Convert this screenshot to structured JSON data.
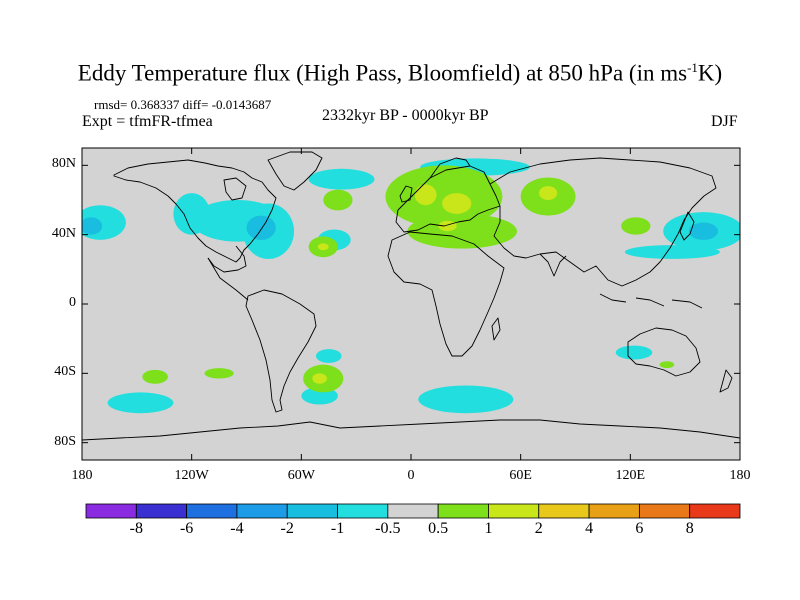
{
  "title_main": "Eddy Temperature flux (High Pass, Bloomfield) at 850 hPa (in ms",
  "title_sup": "-1",
  "title_end": "K)",
  "stats": "rmsd= 0.368337 diff= -0.0143687",
  "expt": "Expt = tfmFR-tfmea",
  "period": "2332kyr BP - 0000kyr BP",
  "season": "DJF",
  "map": {
    "projection": "cylindrical-equidistant",
    "lon_range": [
      -180,
      180
    ],
    "lat_range": [
      -90,
      90
    ],
    "y_ticks": [
      {
        "lat": 80,
        "label": "80N"
      },
      {
        "lat": 40,
        "label": "40N"
      },
      {
        "lat": 0,
        "label": "0"
      },
      {
        "lat": -40,
        "label": "40S"
      },
      {
        "lat": -80,
        "label": "80S"
      }
    ],
    "x_ticks": [
      {
        "lon": -180,
        "label": "180"
      },
      {
        "lon": -120,
        "label": "120W"
      },
      {
        "lon": -60,
        "label": "60W"
      },
      {
        "lon": 0,
        "label": "0"
      },
      {
        "lon": 60,
        "label": "60E"
      },
      {
        "lon": 120,
        "label": "120E"
      },
      {
        "lon": 180,
        "label": "180"
      }
    ],
    "background_color": "#d3d3d3",
    "coastline_color": "#000000"
  },
  "colorbar": {
    "colors": [
      "#8a2be2",
      "#3a2fd0",
      "#1e6fe0",
      "#1c9be6",
      "#19bde0",
      "#22dede",
      "#d3d3d3",
      "#7de01a",
      "#c8e61a",
      "#e8c81a",
      "#e8a016",
      "#e87818",
      "#e83a1a"
    ],
    "labels": [
      "-8",
      "-6",
      "-4",
      "-2",
      "-1",
      "-0.5",
      "0.5",
      "1",
      "2",
      "4",
      "6",
      "8"
    ]
  },
  "anomalies": [
    {
      "level": "-1",
      "color": "#22dede",
      "lon": -170,
      "lat": 47,
      "rlon": 14,
      "rlat": 10
    },
    {
      "level": "-2",
      "color": "#19bde0",
      "lon": -175,
      "lat": 45,
      "rlon": 6,
      "rlat": 5
    },
    {
      "level": "-1",
      "color": "#22dede",
      "lon": -120,
      "lat": 52,
      "rlon": 10,
      "rlat": 12
    },
    {
      "level": "-1",
      "color": "#22dede",
      "lon": -95,
      "lat": 48,
      "rlon": 25,
      "rlat": 12
    },
    {
      "level": "-1",
      "color": "#22dede",
      "lon": -78,
      "lat": 42,
      "rlon": 14,
      "rlat": 16
    },
    {
      "level": "-2",
      "color": "#19bde0",
      "lon": -82,
      "lat": 44,
      "rlon": 8,
      "rlat": 7
    },
    {
      "level": "-1",
      "color": "#22dede",
      "lon": -38,
      "lat": 72,
      "rlon": 18,
      "rlat": 6
    },
    {
      "level": "-1",
      "color": "#22dede",
      "lon": 35,
      "lat": 79,
      "rlon": 30,
      "rlat": 5
    },
    {
      "level": "-1",
      "color": "#22dede",
      "lon": -42,
      "lat": 37,
      "rlon": 9,
      "rlat": 6
    },
    {
      "level": "-1",
      "color": "#22dede",
      "lon": 160,
      "lat": 42,
      "rlon": 22,
      "rlat": 11
    },
    {
      "level": "-2",
      "color": "#19bde0",
      "lon": 160,
      "lat": 42,
      "rlon": 8,
      "rlat": 5
    },
    {
      "level": "-1",
      "color": "#22dede",
      "lon": 143,
      "lat": 30,
      "rlon": 26,
      "rlat": 4
    },
    {
      "level": "-1",
      "color": "#22dede",
      "lon": -148,
      "lat": -57,
      "rlon": 18,
      "rlat": 6
    },
    {
      "level": "-1",
      "color": "#22dede",
      "lon": 30,
      "lat": -55,
      "rlon": 26,
      "rlat": 8
    },
    {
      "level": "-1",
      "color": "#22dede",
      "lon": -50,
      "lat": -53,
      "rlon": 10,
      "rlat": 5
    },
    {
      "level": "-1",
      "color": "#22dede",
      "lon": -45,
      "lat": -30,
      "rlon": 7,
      "rlat": 4
    },
    {
      "level": "-1",
      "color": "#22dede",
      "lon": 122,
      "lat": -28,
      "rlon": 10,
      "rlat": 4
    },
    {
      "level": "1",
      "color": "#7de01a",
      "lon": 18,
      "lat": 62,
      "rlon": 32,
      "rlat": 18
    },
    {
      "level": "2",
      "color": "#c8e61a",
      "lon": 8,
      "lat": 63,
      "rlon": 6,
      "rlat": 6
    },
    {
      "level": "2",
      "color": "#c8e61a",
      "lon": 25,
      "lat": 58,
      "rlon": 8,
      "rlat": 6
    },
    {
      "level": "1",
      "color": "#7de01a",
      "lon": 28,
      "lat": 42,
      "rlon": 30,
      "rlat": 10
    },
    {
      "level": "2",
      "color": "#c8e61a",
      "lon": 20,
      "lat": 45,
      "rlon": 5,
      "rlat": 3
    },
    {
      "level": "1",
      "color": "#7de01a",
      "lon": -40,
      "lat": 60,
      "rlon": 8,
      "rlat": 6
    },
    {
      "level": "1",
      "color": "#7de01a",
      "lon": -48,
      "lat": 33,
      "rlon": 8,
      "rlat": 6
    },
    {
      "level": "2",
      "color": "#c8e61a",
      "lon": -48,
      "lat": 33,
      "rlon": 3,
      "rlat": 2
    },
    {
      "level": "1",
      "color": "#7de01a",
      "lon": 75,
      "lat": 62,
      "rlon": 15,
      "rlat": 11
    },
    {
      "level": "2",
      "color": "#c8e61a",
      "lon": 75,
      "lat": 64,
      "rlon": 5,
      "rlat": 4
    },
    {
      "level": "1",
      "color": "#7de01a",
      "lon": 123,
      "lat": 45,
      "rlon": 8,
      "rlat": 5
    },
    {
      "level": "1",
      "color": "#7de01a",
      "lon": -140,
      "lat": -42,
      "rlon": 7,
      "rlat": 4
    },
    {
      "level": "1",
      "color": "#7de01a",
      "lon": -105,
      "lat": -40,
      "rlon": 8,
      "rlat": 3
    },
    {
      "level": "1",
      "color": "#7de01a",
      "lon": -48,
      "lat": -43,
      "rlon": 11,
      "rlat": 8
    },
    {
      "level": "2",
      "color": "#c8e61a",
      "lon": -50,
      "lat": -43,
      "rlon": 4,
      "rlat": 3
    },
    {
      "level": "1",
      "color": "#7de01a",
      "lon": 140,
      "lat": -35,
      "rlon": 4,
      "rlat": 2
    }
  ]
}
